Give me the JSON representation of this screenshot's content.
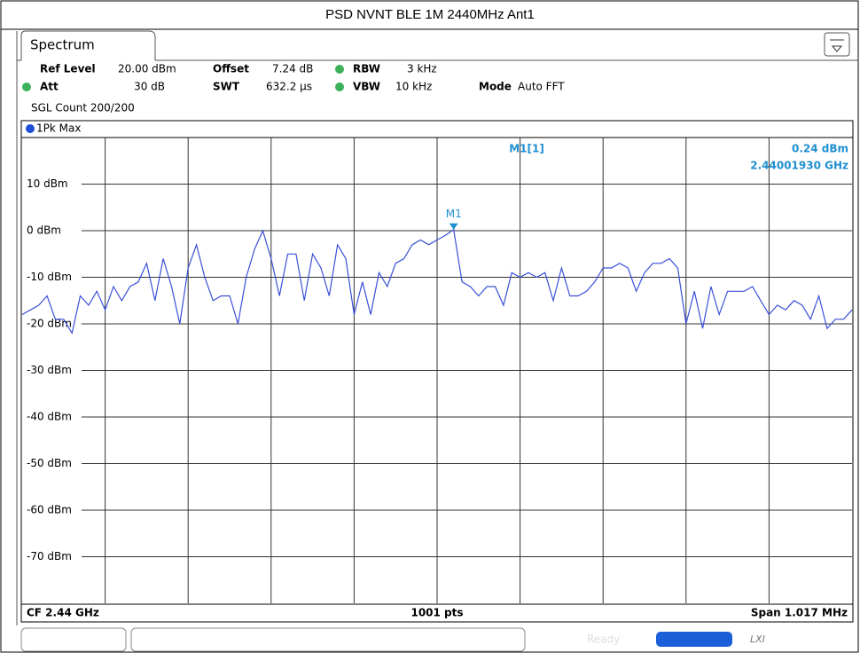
{
  "title": "PSD NVNT BLE 1M 2440MHz Ant1",
  "tab": "Spectrum",
  "header": {
    "ref_level": {
      "label": "Ref Level",
      "value": "20.00 dBm"
    },
    "offset": {
      "label": "Offset",
      "value": "7.24 dB"
    },
    "rbw": {
      "label": "RBW",
      "value": "3 kHz"
    },
    "att": {
      "label": "Att",
      "value": "30 dB"
    },
    "swt": {
      "label": "SWT",
      "value": "632.2 µs"
    },
    "vbw": {
      "label": "VBW",
      "value": "10 kHz"
    },
    "mode": {
      "label": "Mode",
      "value": "Auto FFT"
    },
    "count": "SGL Count 200/200"
  },
  "trace_label": "1Pk Max",
  "footer": {
    "center_freq": "CF 2.44 GHz",
    "points": "1001 pts",
    "span": "Span 1.017 MHz"
  },
  "status": "Ready",
  "chart_data": {
    "type": "line",
    "xlim": [
      0,
      1000
    ],
    "ylim": [
      -80,
      20
    ],
    "yticks": [
      {
        "value": 10,
        "label": "10 dBm"
      },
      {
        "value": 0,
        "label": "0 dBm"
      },
      {
        "value": -10,
        "label": "-10 dBm"
      },
      {
        "value": -20,
        "label": "-20 dBm"
      },
      {
        "value": -30,
        "label": "-30 dBm"
      },
      {
        "value": -40,
        "label": "-40 dBm"
      },
      {
        "value": -50,
        "label": "-50 dBm"
      },
      {
        "value": -60,
        "label": "-60 dBm"
      },
      {
        "value": -70,
        "label": "-70 dBm"
      }
    ],
    "grid": true,
    "x": [
      0,
      10,
      20,
      30,
      40,
      50,
      60,
      70,
      80,
      90,
      100,
      110,
      120,
      130,
      140,
      150,
      160,
      170,
      180,
      190,
      200,
      210,
      220,
      230,
      240,
      250,
      260,
      270,
      280,
      290,
      300,
      310,
      320,
      330,
      340,
      350,
      360,
      370,
      380,
      390,
      400,
      410,
      420,
      430,
      440,
      450,
      460,
      470,
      480,
      490,
      500,
      510,
      520,
      530,
      540,
      550,
      560,
      570,
      580,
      590,
      600,
      610,
      620,
      630,
      640,
      650,
      660,
      670,
      680,
      690,
      700,
      710,
      720,
      730,
      740,
      750,
      760,
      770,
      780,
      790,
      800,
      810,
      820,
      830,
      840,
      850,
      860,
      870,
      880,
      890,
      900,
      910,
      920,
      930,
      940,
      950,
      960,
      970,
      980,
      990,
      1000
    ],
    "series": [
      {
        "name": "1Pk Max",
        "color": "#3a4fd8",
        "values": [
          -18,
          -17,
          -16,
          -14,
          -19,
          -19,
          -22,
          -14,
          -16,
          -13,
          -17,
          -12,
          -15,
          -12,
          -11,
          -7,
          -15,
          -6,
          -12,
          -20,
          -8,
          -3,
          -10,
          -15,
          -14,
          -14,
          -20,
          -10,
          -4,
          0,
          -6,
          -14,
          -5,
          -5,
          -15,
          -5,
          -8,
          -14,
          -3,
          -6,
          -18,
          -11,
          -18,
          -9,
          -12,
          -7,
          -6,
          -3,
          -2,
          -3,
          -2,
          -1,
          0.24,
          -11,
          -12,
          -14,
          -12,
          -12,
          -16,
          -9,
          -10,
          -9,
          -10,
          -9,
          -15,
          -8,
          -14,
          -14,
          -13,
          -11,
          -8,
          -8,
          -7,
          -8,
          -13,
          -9,
          -7,
          -7,
          -6,
          -8,
          -20,
          -13,
          -21,
          -12,
          -18,
          -13,
          -13,
          -13,
          -12,
          -15,
          -18,
          -16,
          -17,
          -15,
          -16,
          -19,
          -14,
          -21,
          -19,
          -19,
          -17
        ]
      }
    ],
    "marker": {
      "label": "M1",
      "x": 520,
      "value": 0.24,
      "readout_name": "M1[1]",
      "readout_value": "0.24 dBm",
      "readout_freq": "2.44001930 GHz"
    }
  }
}
